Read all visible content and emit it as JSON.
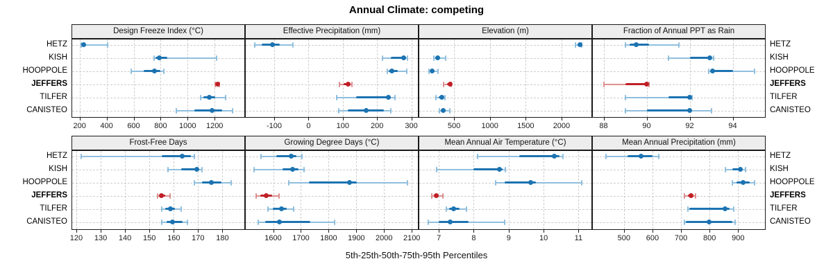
{
  "title": "Annual Climate: competing",
  "caption": "5th-25th-50th-75th-95th Percentiles",
  "sites": [
    "HETZ",
    "KISH",
    "HOOPPOLE",
    "JEFFERS",
    "TILFER",
    "CANISTEO"
  ],
  "highlight_site": "JEFFERS",
  "colors": {
    "blue_dark": "#1c73b1",
    "blue_light": "#8fbfde",
    "red_dark": "#c01f26",
    "red_light": "#dc8f8f",
    "strip_bg": "#ededed",
    "grid": "#cdcdcd",
    "border": "#1a1a1a"
  },
  "chart_data": {
    "type": "dotplot-percentiles",
    "percentile_labels": [
      "5th",
      "25th",
      "50th",
      "75th",
      "95th"
    ],
    "rows_top_to_bottom": [
      "HETZ",
      "KISH",
      "HOOPPOLE",
      "JEFFERS",
      "TILFER",
      "CANISTEO"
    ],
    "legend_note": "thin capped line = 5th-95th, thick line = 25th-75th, dot = median; JEFFERS shown in red",
    "panels": [
      {
        "title": "Design Freeze Index (°C)",
        "grid_row": 0,
        "grid_col": 0,
        "xlim": [
          145,
          1420
        ],
        "ticks": [
          200,
          400,
          600,
          800,
          1000,
          1200
        ],
        "values": [
          [
            210,
            216,
            228,
            250,
            408
          ],
          [
            750,
            764,
            791,
            850,
            1216
          ],
          [
            580,
            674,
            753,
            800,
            825
          ],
          [
            1203,
            1210,
            1220,
            1228,
            1237
          ],
          [
            1094,
            1119,
            1161,
            1203,
            1282
          ],
          [
            917,
            1052,
            1181,
            1253,
            1332
          ]
        ]
      },
      {
        "title": "Effective Precipitation (mm)",
        "grid_row": 0,
        "grid_col": 1,
        "xlim": [
          -183,
          319
        ],
        "ticks": [
          -100,
          0,
          100,
          200,
          300
        ],
        "values": [
          [
            -156,
            -137,
            -105,
            -83,
            -46
          ],
          [
            215,
            240,
            277,
            285,
            289
          ],
          [
            229,
            234,
            243,
            260,
            287
          ],
          [
            90,
            103,
            116,
            122,
            127
          ],
          [
            82,
            138,
            233,
            241,
            252
          ],
          [
            89,
            114,
            169,
            220,
            240
          ]
        ]
      },
      {
        "title": "Elevation (m)",
        "grid_row": 0,
        "grid_col": 2,
        "xlim": [
          15,
          2417
        ],
        "ticks": [
          500,
          1000,
          1500,
          2000
        ],
        "values": [
          [
            2190,
            2230,
            2258,
            2272,
            2283
          ],
          [
            216,
            242,
            268,
            306,
            384
          ],
          [
            148,
            168,
            193,
            232,
            274
          ],
          [
            358,
            403,
            442,
            452,
            461
          ],
          [
            250,
            284,
            332,
            355,
            374
          ],
          [
            300,
            316,
            352,
            387,
            439
          ]
        ]
      },
      {
        "title": "Fraction of Annual PPT as Rain",
        "grid_row": 0,
        "grid_col": 3,
        "xlim": [
          87.5,
          95.5
        ],
        "ticks": [
          88,
          90,
          92,
          94
        ],
        "values": [
          [
            89.0,
            89.2,
            89.5,
            90.1,
            91.5
          ],
          [
            91.0,
            92.0,
            92.95,
            93.0,
            93.1
          ],
          [
            92.9,
            93.0,
            93.05,
            94.0,
            95.0
          ],
          [
            88.0,
            89.0,
            90.0,
            90.05,
            90.1
          ],
          [
            89.0,
            91.0,
            92.0,
            92.05,
            92.1
          ],
          [
            89.0,
            90.0,
            92.0,
            92.1,
            93.0
          ]
        ]
      },
      {
        "title": "Frost-Free Days",
        "grid_row": 1,
        "grid_col": 0,
        "xlim": [
          118.3,
          189
        ],
        "ticks": [
          120,
          130,
          140,
          150,
          160,
          170,
          180
        ],
        "values": [
          [
            122,
            155,
            163.5,
            167,
            168.5
          ],
          [
            157.5,
            163,
            169.5,
            170.5,
            171.5
          ],
          [
            168.5,
            171.5,
            175.5,
            179.5,
            183.5
          ],
          [
            153.5,
            154,
            155,
            156.5,
            158.5
          ],
          [
            155,
            156.5,
            158.5,
            160.5,
            163
          ],
          [
            155,
            157,
            159.5,
            163.5,
            165.5
          ]
        ]
      },
      {
        "title": "Growing Degree Days (°C)",
        "grid_row": 1,
        "grid_col": 1,
        "xlim": [
          1501,
          2122
        ],
        "ticks": [
          1600,
          1700,
          1800,
          1900,
          2000,
          2100
        ],
        "values": [
          [
            1557,
            1612,
            1665,
            1683,
            1704
          ],
          [
            1532,
            1633,
            1669,
            1692,
            1711
          ],
          [
            1655,
            1730,
            1875,
            1902,
            2085
          ],
          [
            1538,
            1553,
            1574,
            1595,
            1620
          ],
          [
            1581,
            1599,
            1630,
            1650,
            1675
          ],
          [
            1546,
            1570,
            1622,
            1734,
            1822
          ]
        ]
      },
      {
        "title": "Mean Annual Air Temperature (°C)",
        "grid_row": 1,
        "grid_col": 2,
        "xlim": [
          6.44,
          11.37
        ],
        "ticks": [
          7,
          8,
          9,
          10,
          11
        ],
        "values": [
          [
            8.1,
            9.3,
            10.3,
            10.45,
            10.55
          ],
          [
            6.93,
            8.0,
            8.74,
            8.82,
            8.9
          ],
          [
            8.62,
            8.89,
            9.63,
            9.78,
            11.09
          ],
          [
            6.79,
            6.86,
            6.93,
            7.0,
            7.12
          ],
          [
            7.22,
            7.3,
            7.43,
            7.6,
            7.8
          ],
          [
            6.7,
            7.0,
            7.32,
            7.86,
            8.89
          ]
        ]
      },
      {
        "title": "Mean Annual Precipitation (mm)",
        "grid_row": 1,
        "grid_col": 3,
        "xlim": [
          391,
          994
        ],
        "ticks": [
          500,
          600,
          700,
          800,
          900
        ],
        "values": [
          [
            437,
            512,
            560,
            600,
            623
          ],
          [
            855,
            880,
            908,
            916,
            925
          ],
          [
            880,
            895,
            918,
            940,
            958
          ],
          [
            712,
            724,
            735,
            744,
            751
          ],
          [
            723,
            728,
            855,
            871,
            884
          ],
          [
            713,
            718,
            798,
            880,
            890
          ]
        ]
      }
    ]
  }
}
